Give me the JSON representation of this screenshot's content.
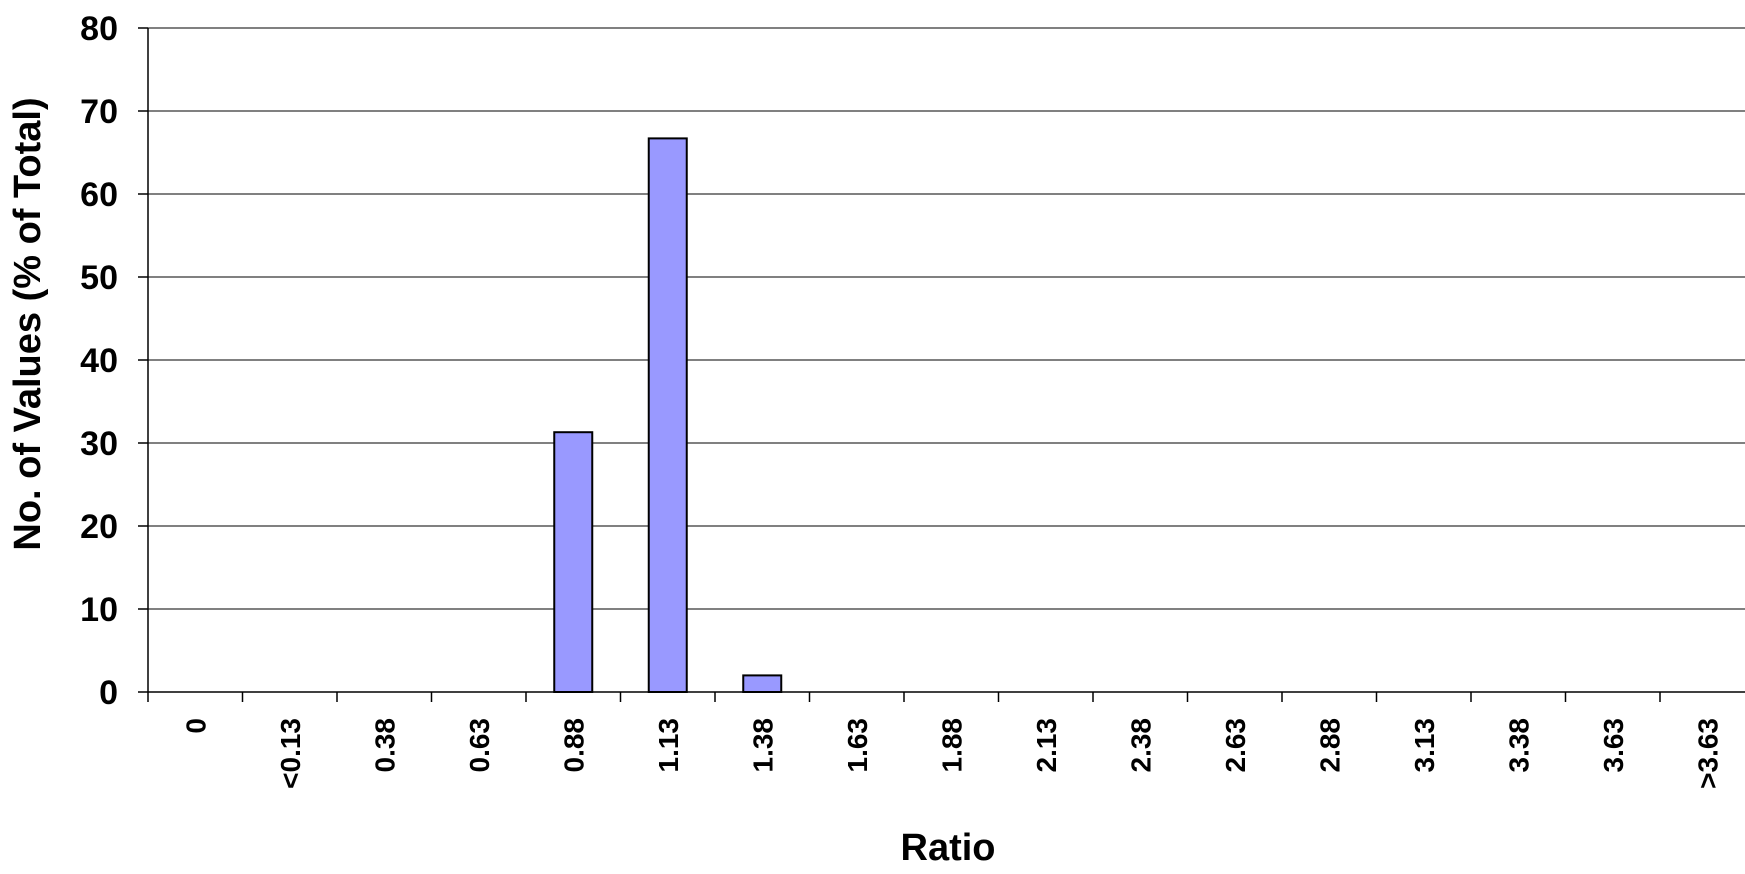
{
  "chart_data": {
    "type": "bar",
    "title": "",
    "xlabel": "Ratio",
    "ylabel": "No. of Values (% of Total)",
    "ylim": [
      0,
      80
    ],
    "yticks": [
      0,
      10,
      20,
      30,
      40,
      50,
      60,
      70,
      80
    ],
    "grid": true,
    "legend": "none",
    "bar_color": "#9999ff",
    "categories": [
      "0",
      "<0.13",
      "0.38",
      "0.63",
      "0.88",
      "1.13",
      "1.38",
      "1.63",
      "1.88",
      "2.13",
      "2.38",
      "2.63",
      "2.88",
      "3.13",
      "3.38",
      "3.63",
      ">3.63"
    ],
    "values": [
      0,
      0,
      0,
      0,
      31.3,
      66.7,
      2.0,
      0,
      0,
      0,
      0,
      0,
      0,
      0,
      0,
      0,
      0
    ]
  }
}
